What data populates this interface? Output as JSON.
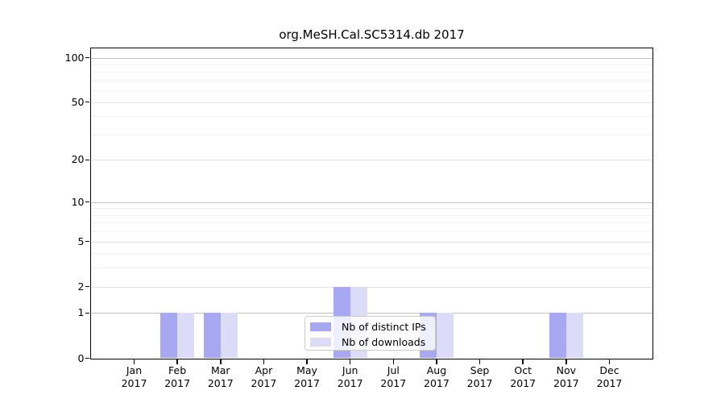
{
  "chart_data": {
    "type": "bar",
    "title": "org.MeSH.Cal.SC5314.db 2017",
    "categories": [
      "Jan",
      "Feb",
      "Mar",
      "Apr",
      "May",
      "Jun",
      "Jul",
      "Aug",
      "Sep",
      "Oct",
      "Nov",
      "Dec"
    ],
    "x_sublabel": "2017",
    "series": [
      {
        "name": "Nb of distinct IPs",
        "color": "#a8a8f2",
        "values": [
          0,
          1,
          1,
          0,
          0,
          2,
          0,
          1,
          0,
          0,
          1,
          0
        ]
      },
      {
        "name": "Nb of downloads",
        "color": "#dcdcf8",
        "values": [
          0,
          1,
          1,
          0,
          0,
          2,
          0,
          1,
          0,
          0,
          1,
          0
        ]
      }
    ],
    "y_scale": "log1p",
    "ylim": [
      0,
      100
    ],
    "y_ticks": [
      0,
      1,
      2,
      5,
      10,
      20,
      50,
      100
    ],
    "y_decade_ticks": [
      1,
      10,
      100
    ],
    "y_minor_ticks": [
      3,
      4,
      6,
      7,
      8,
      9,
      30,
      40,
      60,
      70,
      80,
      90
    ],
    "grid": "on",
    "legend_position": "bottom-center",
    "colors": {
      "spine": "#000000",
      "grid_major": "#c2c2c2",
      "grid_minor": "#f1f1f1"
    }
  }
}
